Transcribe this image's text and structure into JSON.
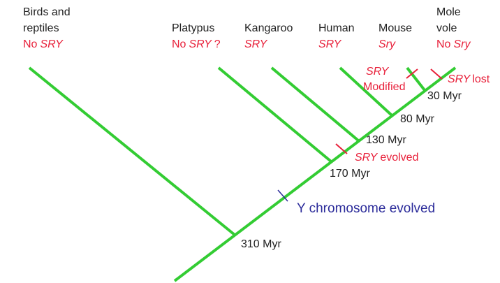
{
  "taxa": [
    {
      "name": [
        "Birds and",
        "reptiles"
      ],
      "status": [
        {
          "text": "No",
          "italic": false
        },
        {
          "text": "SRY",
          "italic": true
        }
      ]
    },
    {
      "name": [
        "Platypus"
      ],
      "status": [
        {
          "text": "No",
          "italic": false
        },
        {
          "text": "SRY",
          "italic": true
        },
        {
          "text": "?",
          "italic": false
        }
      ]
    },
    {
      "name": [
        "Kangaroo"
      ],
      "status": [
        {
          "text": "SRY",
          "italic": true
        }
      ]
    },
    {
      "name": [
        "Human"
      ],
      "status": [
        {
          "text": "SRY",
          "italic": true
        }
      ]
    },
    {
      "name": [
        "Mouse"
      ],
      "status": [
        {
          "text": "Sry",
          "italic": true
        }
      ]
    },
    {
      "name": [
        "Mole",
        "vole"
      ],
      "status": [
        {
          "text": "No",
          "italic": false
        },
        {
          "text": "Sry",
          "italic": true
        }
      ]
    }
  ],
  "nodes": [
    "310 Myr",
    "170 Myr",
    "130 Myr",
    "80 Myr",
    "30 Myr"
  ],
  "events": {
    "y_chromosome": "Y chromosome evolved",
    "sry_evolved": {
      "gene": "SRY",
      "text": "evolved"
    },
    "sry_modified": {
      "gene": "SRY",
      "text": "Modified"
    },
    "sry_lost": {
      "gene": "SRY",
      "text": "lost"
    }
  }
}
